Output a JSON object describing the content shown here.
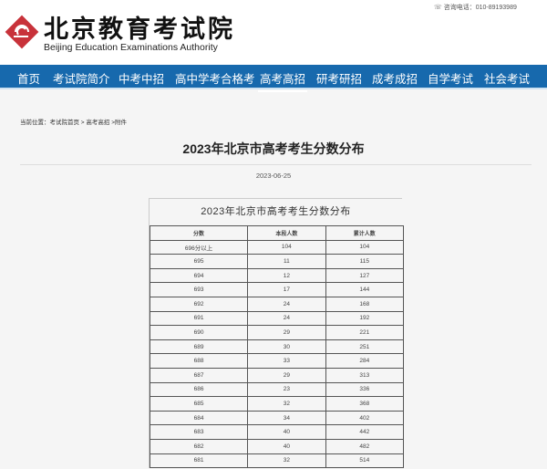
{
  "header": {
    "logo_cn": "北京教育考试院",
    "logo_en": "Beijing Education Examinations Authority",
    "phone": "咨询电话：010-89193989",
    "brand_color": "#c8323a"
  },
  "nav": {
    "items": [
      "首页",
      "考试院简介",
      "中考中招",
      "高中学考合格考",
      "高考高招",
      "研考研招",
      "成考成招",
      "自学考试",
      "社会考试"
    ],
    "active": "高考高招",
    "color": "#1769ad"
  },
  "breadcrumb": "当前位置：考试院首页 > 高考高招 >附件",
  "article": {
    "title": "2023年北京市高考考生分数分布",
    "date": "2023-06-25"
  },
  "table": {
    "caption": "2023年北京市高考考生分数分布",
    "headers": [
      "分数",
      "本段人数",
      "累计人数"
    ],
    "rows": [
      [
        "696分以上",
        "104",
        "104"
      ],
      [
        "695",
        "11",
        "115"
      ],
      [
        "694",
        "12",
        "127"
      ],
      [
        "693",
        "17",
        "144"
      ],
      [
        "692",
        "24",
        "168"
      ],
      [
        "691",
        "24",
        "192"
      ],
      [
        "690",
        "29",
        "221"
      ],
      [
        "689",
        "30",
        "251"
      ],
      [
        "688",
        "33",
        "284"
      ],
      [
        "687",
        "29",
        "313"
      ],
      [
        "686",
        "23",
        "336"
      ],
      [
        "685",
        "32",
        "368"
      ],
      [
        "684",
        "34",
        "402"
      ],
      [
        "683",
        "40",
        "442"
      ],
      [
        "682",
        "40",
        "482"
      ],
      [
        "681",
        "32",
        "514"
      ]
    ]
  }
}
